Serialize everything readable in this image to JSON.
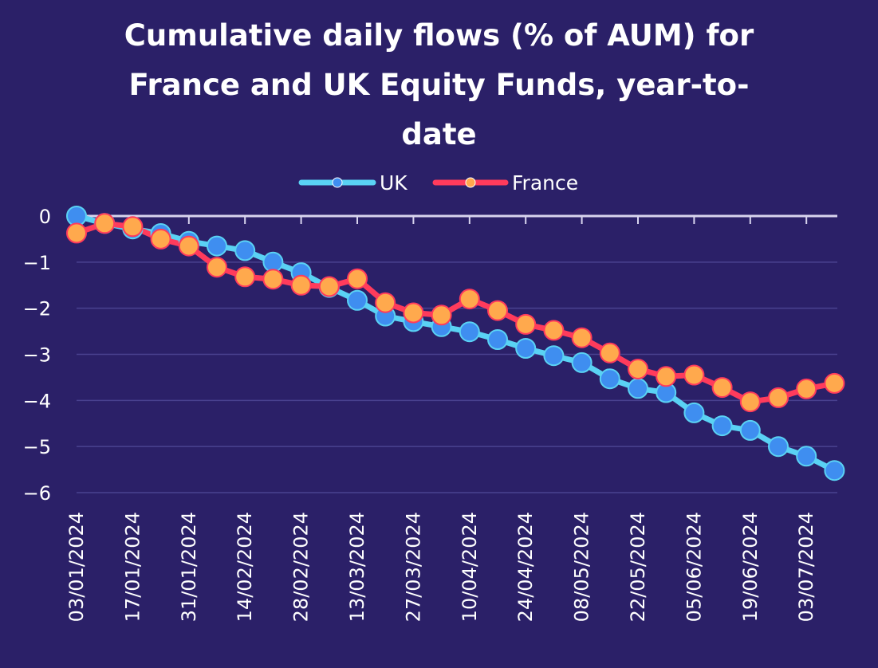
{
  "chart_data": {
    "type": "line",
    "title_lines": [
      "Cumulative daily flows (% of AUM) for",
      "France and UK Equity Funds, year-to-",
      "date"
    ],
    "xlabel": "",
    "ylabel": "",
    "ylim": [
      -6,
      0
    ],
    "yticks": [
      "0",
      "-1",
      "-2",
      "-3",
      "-4",
      "-5",
      "-6"
    ],
    "x": [
      "03/01/2024",
      "10/01/2024",
      "17/01/2024",
      "24/01/2024",
      "31/01/2024",
      "07/02/2024",
      "14/02/2024",
      "21/02/2024",
      "28/02/2024",
      "06/03/2024",
      "13/03/2024",
      "20/03/2024",
      "27/03/2024",
      "03/04/2024",
      "10/04/2024",
      "17/04/2024",
      "24/04/2024",
      "01/05/2024",
      "08/05/2024",
      "15/05/2024",
      "22/05/2024",
      "29/05/2024",
      "05/06/2024",
      "12/06/2024",
      "19/06/2024",
      "26/06/2024",
      "03/07/2024",
      "10/07/2024"
    ],
    "xticks": [
      "03/01/2024",
      "17/01/2024",
      "31/01/2024",
      "14/02/2024",
      "28/02/2024",
      "13/03/2024",
      "27/03/2024",
      "10/04/2024",
      "24/04/2024",
      "08/05/2024",
      "22/05/2024",
      "05/06/2024",
      "19/06/2024",
      "03/07/2024"
    ],
    "grid": "horizontal",
    "legend_position": "top-center",
    "series": [
      {
        "name": "UK",
        "line_color": "#5ad2f4",
        "marker_color": "#3f8ef0",
        "values": [
          0.0,
          -0.16,
          -0.28,
          -0.38,
          -0.55,
          -0.65,
          -0.75,
          -1.0,
          -1.23,
          -1.55,
          -1.83,
          -2.17,
          -2.29,
          -2.4,
          -2.51,
          -2.68,
          -2.87,
          -3.03,
          -3.18,
          -3.53,
          -3.74,
          -3.83,
          -4.27,
          -4.55,
          -4.65,
          -5.0,
          -5.21,
          -5.52
        ]
      },
      {
        "name": "France",
        "line_color": "#ff3b5c",
        "marker_color": "#ffa94d",
        "values": [
          -0.37,
          -0.16,
          -0.23,
          -0.5,
          -0.65,
          -1.11,
          -1.32,
          -1.37,
          -1.5,
          -1.53,
          -1.36,
          -1.88,
          -2.1,
          -2.15,
          -1.8,
          -2.05,
          -2.35,
          -2.48,
          -2.64,
          -2.97,
          -3.32,
          -3.48,
          -3.45,
          -3.72,
          -4.03,
          -3.94,
          -3.75,
          -3.63
        ]
      }
    ]
  }
}
